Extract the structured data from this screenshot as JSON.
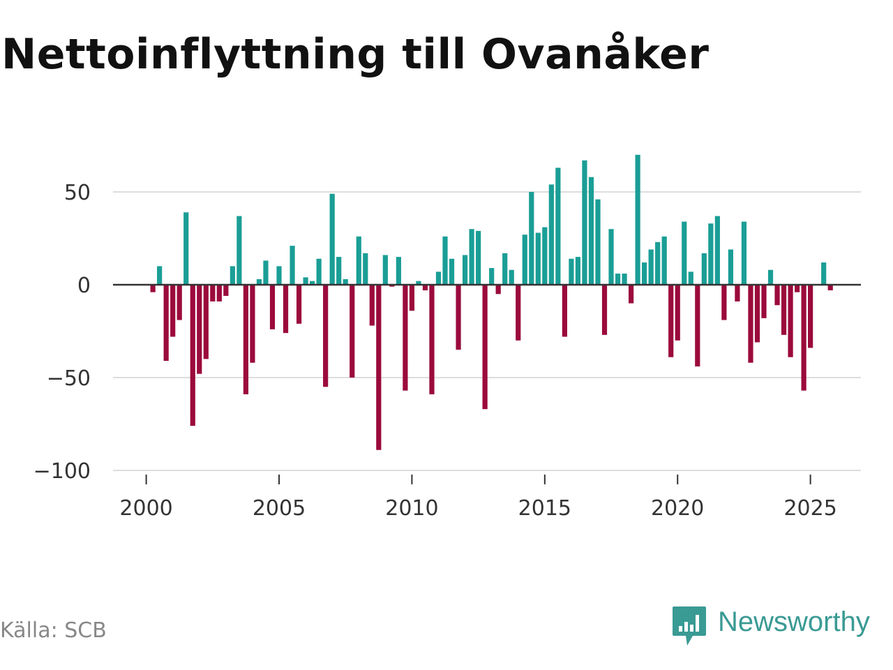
{
  "header": {
    "title": "Nettoinflyttning till Ovanåker"
  },
  "footer": {
    "source": "Källa: SCB",
    "brand": "Newsworthy"
  },
  "colors": {
    "positive": "#1a9e96",
    "negative": "#9b0a3c",
    "grid": "#dddddd",
    "zero_line": "#333333",
    "axis_text": "#333333",
    "brand": "#3a9a94"
  },
  "chart_data": {
    "type": "bar",
    "title": "Nettoinflyttning till Ovanåker",
    "xlabel": "",
    "ylabel": "",
    "ylim": [
      -100,
      70
    ],
    "y_ticks": [
      50,
      0,
      -50,
      -100
    ],
    "y_tick_labels": [
      "50",
      "0",
      "−50",
      "−100"
    ],
    "x_ticks": [
      2000,
      2005,
      2010,
      2015,
      2020,
      2025
    ],
    "x_tick_labels": [
      "2000",
      "2005",
      "2010",
      "2015",
      "2020",
      "2025"
    ],
    "xlim": [
      1998.75,
      2026.9
    ],
    "grid": true,
    "period": "quarterly",
    "start": "2000-Q1",
    "series": [
      {
        "name": "Nettoinflyttning",
        "values": [
          0,
          -4,
          10,
          -41,
          -28,
          -19,
          39,
          -76,
          -48,
          -40,
          -9,
          -9,
          -6,
          10,
          37,
          -59,
          -42,
          3,
          13,
          -24,
          10,
          -26,
          21,
          -21,
          4,
          2,
          14,
          -55,
          49,
          15,
          3,
          -50,
          26,
          17,
          -22,
          -89,
          16,
          -1,
          15,
          -57,
          -14,
          2,
          -3,
          -59,
          7,
          26,
          14,
          -35,
          16,
          30,
          29,
          -67,
          9,
          -5,
          17,
          8,
          -30,
          27,
          50,
          28,
          31,
          54,
          63,
          -28,
          14,
          15,
          67,
          58,
          46,
          -27,
          30,
          6,
          6,
          -10,
          70,
          12,
          19,
          23,
          26,
          -39,
          -30,
          34,
          7,
          -44,
          17,
          33,
          37,
          -19,
          19,
          -9,
          34,
          -42,
          -31,
          -18,
          8,
          -11,
          -27,
          -39,
          -4,
          -57,
          -34,
          0,
          12,
          -3
        ]
      }
    ]
  }
}
